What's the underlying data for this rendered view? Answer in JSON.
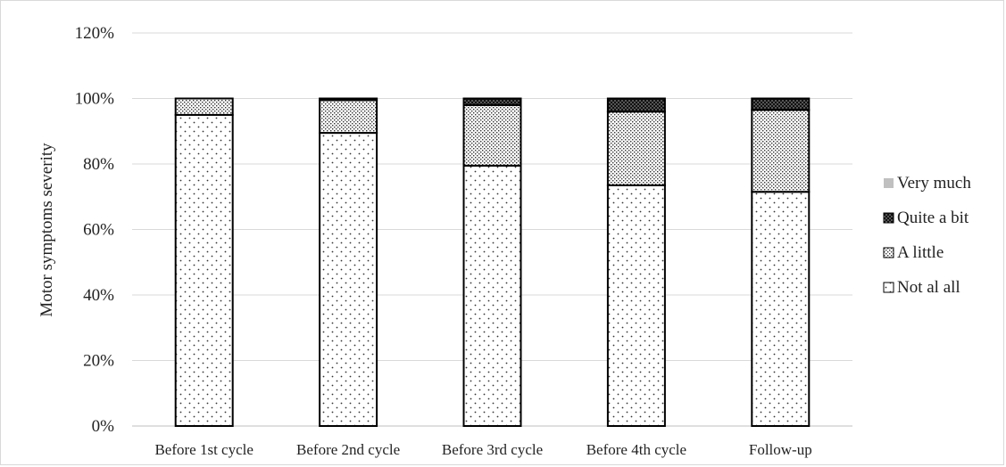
{
  "chart_data": {
    "type": "bar",
    "stacked": true,
    "percent_axis": true,
    "title": "",
    "xlabel": "",
    "ylabel": "Motor symptoms severity",
    "ylim": [
      0,
      120
    ],
    "yticks": [
      "0%",
      "20%",
      "40%",
      "60%",
      "80%",
      "100%",
      "120%"
    ],
    "grid": true,
    "legend_position": "right",
    "categories": [
      "Before 1st cycle",
      "Before 2nd cycle",
      "Before 3rd cycle",
      "Before 4th cycle",
      "Follow-up"
    ],
    "series": [
      {
        "name": "Not al all",
        "values": [
          95,
          89.5,
          79.5,
          73.5,
          71.5
        ],
        "pattern": "sparse-dots"
      },
      {
        "name": "A little",
        "values": [
          5,
          10,
          18.5,
          22.5,
          25
        ],
        "pattern": "dense-checker"
      },
      {
        "name": "Quite a bit",
        "values": [
          0,
          0.5,
          2,
          4,
          3.5
        ],
        "pattern": "black-dotted"
      },
      {
        "name": "Very much",
        "values": [
          0,
          0,
          0,
          0,
          0
        ],
        "pattern": "solid-gray"
      }
    ],
    "legend_order": [
      "Very much",
      "Quite a bit",
      "A little",
      "Not al all"
    ],
    "colors": {
      "grid": "#d9d9d9",
      "axis": "#bfbfbf",
      "bar_outline": "#000000",
      "very_much": "#c0c0c0"
    }
  }
}
